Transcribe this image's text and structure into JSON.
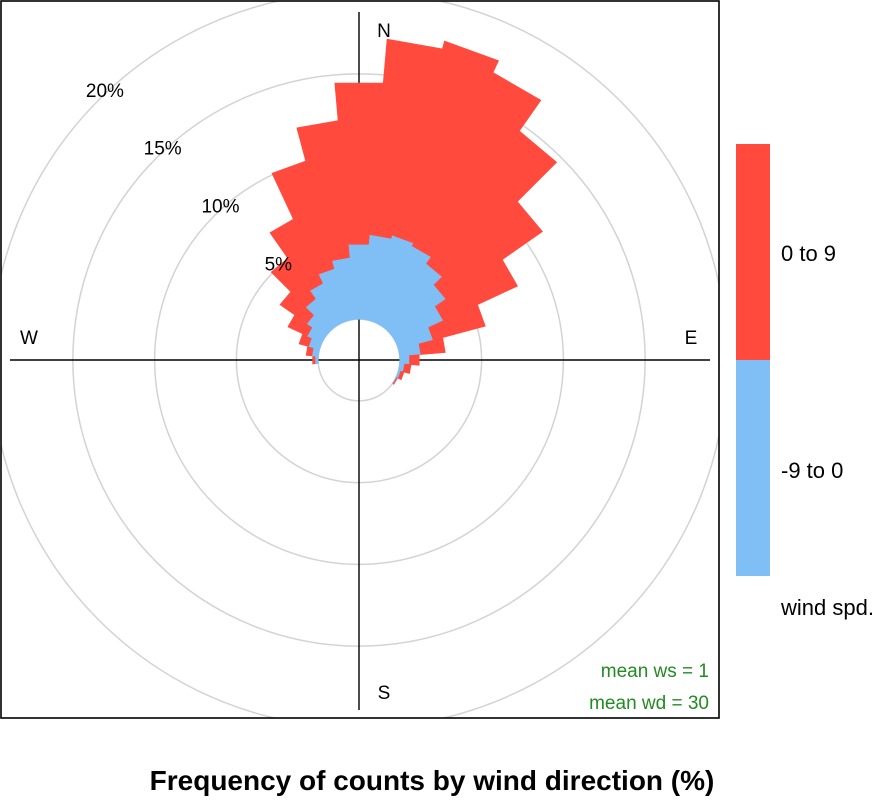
{
  "chart_data": {
    "type": "wind-rose",
    "title": "Frequency of counts by wind direction (%)",
    "compass": {
      "north": "N",
      "east": "E",
      "south": "S",
      "west": "W"
    },
    "radial_ticks": [
      {
        "value": 5,
        "label": "5%"
      },
      {
        "value": 10,
        "label": "10%"
      },
      {
        "value": 15,
        "label": "15%"
      },
      {
        "value": 20,
        "label": "20%"
      }
    ],
    "radial_max": 20,
    "offset": 2.5,
    "grid": true,
    "legend_position": "right",
    "legend_title": "wind spd.",
    "direction_interval_deg": 10,
    "directions": [
      -90,
      -80,
      -70,
      -60,
      -50,
      -40,
      -30,
      -20,
      -10,
      0,
      10,
      20,
      30,
      40,
      50,
      60,
      70,
      80,
      90,
      100,
      110,
      120
    ],
    "series": [
      {
        "name": "-9 to 0",
        "color": "#7FBFF5",
        "values": [
          0.2,
          0.4,
          0.7,
          1.0,
          1.4,
          2.1,
          2.7,
          3.3,
          3.8,
          4.6,
          5.2,
          5.4,
          5.2,
          4.7,
          4.0,
          3.2,
          2.2,
          1.3,
          0.6,
          0.3,
          0.15,
          0.05
        ]
      },
      {
        "name": "0 to 9",
        "color": "#FF4A3D",
        "values": [
          0.15,
          0.35,
          0.6,
          1.3,
          2.0,
          3.0,
          4.3,
          6.8,
          8.4,
          9.9,
          12.0,
          12.3,
          11.7,
          9.9,
          7.2,
          5.0,
          3.3,
          1.5,
          0.6,
          0.4,
          0.2,
          0.05
        ]
      }
    ],
    "stats": {
      "mean_ws_label": "mean ws =  1",
      "mean_wd_label": "mean wd =  30",
      "color": "#228B22"
    },
    "colors": {
      "grid": "#D3D3D3",
      "axis": "#000000",
      "frame": "#000000"
    }
  }
}
